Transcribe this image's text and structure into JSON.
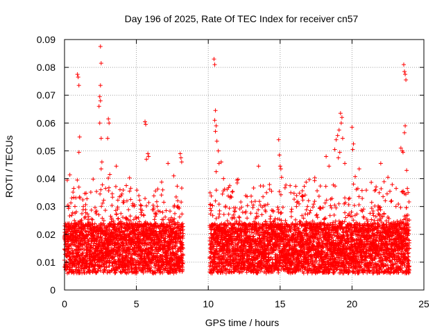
{
  "chart_data": {
    "type": "scatter",
    "title": "Day 196 of 2025, Rate Of TEC Index for receiver cn57",
    "xlabel": "GPS time / hours",
    "ylabel": "ROTI / TECUs",
    "xlim": [
      0,
      25
    ],
    "ylim": [
      0,
      0.09
    ],
    "x_ticks": [
      0,
      5,
      10,
      15,
      20,
      25
    ],
    "x_tick_labels": [
      "0",
      "5",
      "10",
      "15",
      "20",
      "25"
    ],
    "y_ticks": [
      0,
      0.01,
      0.02,
      0.03,
      0.04,
      0.05,
      0.06,
      0.07,
      0.08,
      0.09
    ],
    "y_tick_labels": [
      "0",
      "0.01",
      "0.02",
      "0.03",
      "0.04",
      "0.05",
      "0.06",
      "0.07",
      "0.08",
      "0.09"
    ],
    "grid": true,
    "marker": "+",
    "color": "#ff0000",
    "data_gaps_hours": [
      [
        8.25,
        10.1
      ],
      [
        24.0,
        25.0
      ]
    ],
    "series": [
      {
        "name": "ROTI",
        "x": [
          0.9,
          0.95,
          1.0,
          1.05,
          1.0,
          2.5,
          2.55,
          2.5,
          2.45,
          2.5,
          2.4,
          2.45,
          2.55,
          2.6,
          2.55,
          3.05,
          3.1,
          3.0,
          3.15,
          3.6,
          5.6,
          5.65,
          5.8,
          5.85,
          5.7,
          7.2,
          7.6,
          8.05,
          8.1,
          8.15,
          10.4,
          10.45,
          10.5,
          10.45,
          10.55,
          10.5,
          10.6,
          10.7,
          10.75,
          10.55,
          10.9,
          12.0,
          13.5,
          14.9,
          14.95,
          15.0,
          15.05,
          15.1,
          18.2,
          18.4,
          18.8,
          18.9,
          19.0,
          19.1,
          19.2,
          19.3,
          19.25,
          19.35,
          19.15,
          19.05,
          19.5,
          20.0,
          20.1,
          20.05,
          20.5,
          22.0,
          22.5,
          23.4,
          23.5,
          23.55,
          23.6,
          23.65,
          23.7,
          23.75,
          23.7,
          23.65,
          23.8,
          23.85,
          23.9
        ],
        "y": [
          0.0775,
          0.0765,
          0.0735,
          0.055,
          0.0495,
          0.0875,
          0.0815,
          0.0735,
          0.0695,
          0.068,
          0.066,
          0.06,
          0.0545,
          0.046,
          0.0435,
          0.0615,
          0.06,
          0.0545,
          0.0415,
          0.0445,
          0.0605,
          0.0595,
          0.049,
          0.048,
          0.047,
          0.0455,
          0.041,
          0.049,
          0.0475,
          0.046,
          0.083,
          0.081,
          0.0645,
          0.061,
          0.059,
          0.057,
          0.0535,
          0.05,
          0.0455,
          0.0425,
          0.046,
          0.0395,
          0.0445,
          0.054,
          0.0485,
          0.0445,
          0.0435,
          0.0405,
          0.048,
          0.0445,
          0.0505,
          0.054,
          0.0555,
          0.0575,
          0.0635,
          0.062,
          0.06,
          0.0545,
          0.0495,
          0.0475,
          0.0455,
          0.0585,
          0.0525,
          0.0505,
          0.0435,
          0.0455,
          0.0405,
          0.051,
          0.05,
          0.0495,
          0.081,
          0.0785,
          0.0775,
          0.0755,
          0.059,
          0.0565,
          0.043,
          0.0365,
          0.035
        ]
      }
    ]
  }
}
